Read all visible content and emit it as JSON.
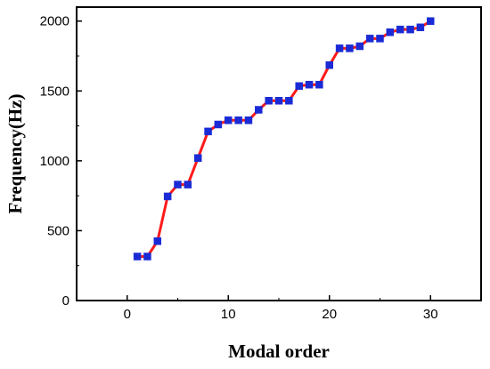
{
  "chart_data": {
    "type": "line",
    "title": "",
    "xlabel": "Modal order",
    "ylabel": "Frequency(Hz)",
    "xlim": [
      -5,
      35
    ],
    "ylim": [
      0,
      2100
    ],
    "x_ticks": [
      0,
      10,
      20,
      30
    ],
    "y_ticks": [
      0,
      500,
      1000,
      1500,
      2000
    ],
    "grid": false,
    "legend": "none",
    "series": [
      {
        "line_color": "#ff1a1a",
        "marker_color": "#1a2bd6",
        "marker": "square",
        "x": [
          1,
          2,
          3,
          4,
          5,
          6,
          7,
          8,
          9,
          10,
          11,
          12,
          13,
          14,
          15,
          16,
          17,
          18,
          19,
          20,
          21,
          22,
          23,
          24,
          25,
          26,
          27,
          28,
          29,
          30
        ],
        "y": [
          315,
          315,
          425,
          745,
          830,
          830,
          1020,
          1210,
          1260,
          1290,
          1290,
          1290,
          1365,
          1430,
          1430,
          1430,
          1535,
          1545,
          1545,
          1685,
          1805,
          1805,
          1820,
          1875,
          1875,
          1920,
          1940,
          1940,
          1955,
          2000
        ]
      }
    ]
  }
}
